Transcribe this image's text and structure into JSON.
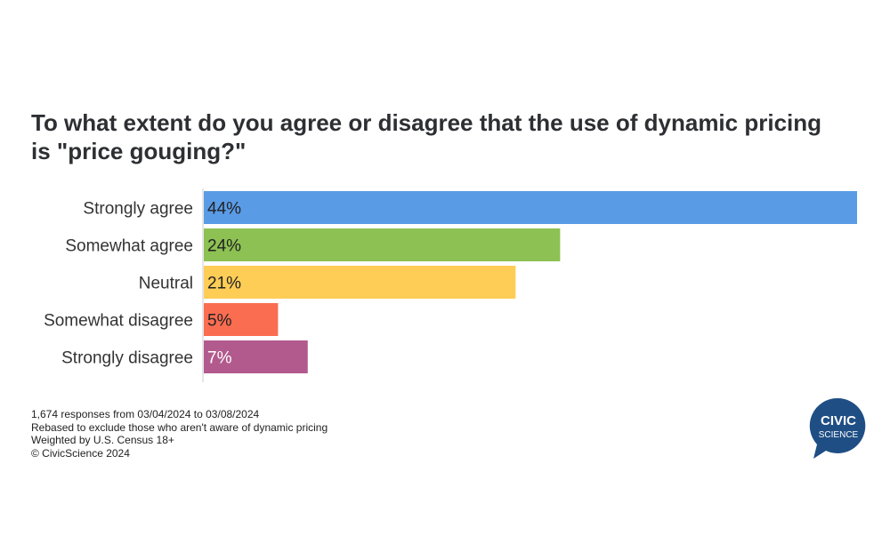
{
  "chart_data": {
    "type": "bar",
    "orientation": "horizontal",
    "title": "To what extent do you agree or disagree that the use of dynamic pricing is \"price gouging?\"",
    "categories": [
      "Strongly agree",
      "Somewhat agree",
      "Neutral",
      "Somewhat disagree",
      "Strongly disagree"
    ],
    "values": [
      44,
      24,
      21,
      5,
      7
    ],
    "data_labels": [
      "44%",
      "24%",
      "21%",
      "5%",
      "7%"
    ],
    "colors": [
      "#5a9be6",
      "#8dc153",
      "#fdcd56",
      "#fb6d51",
      "#b25a8d"
    ],
    "label_colors": [
      "#222",
      "#222",
      "#222",
      "#222",
      "#ffffff"
    ],
    "xlim": [
      0,
      44
    ],
    "grid": false,
    "legend": "none"
  },
  "notes": [
    "1,674 responses from 03/04/2024 to 03/08/2024",
    "Rebased to exclude those who aren't aware of dynamic pricing",
    "Weighted by U.S. Census 18+",
    "© CivicScience 2024"
  ],
  "logo": {
    "line1": "CIVIC",
    "line2": "SCIENCE",
    "color": "#1f4e85"
  }
}
